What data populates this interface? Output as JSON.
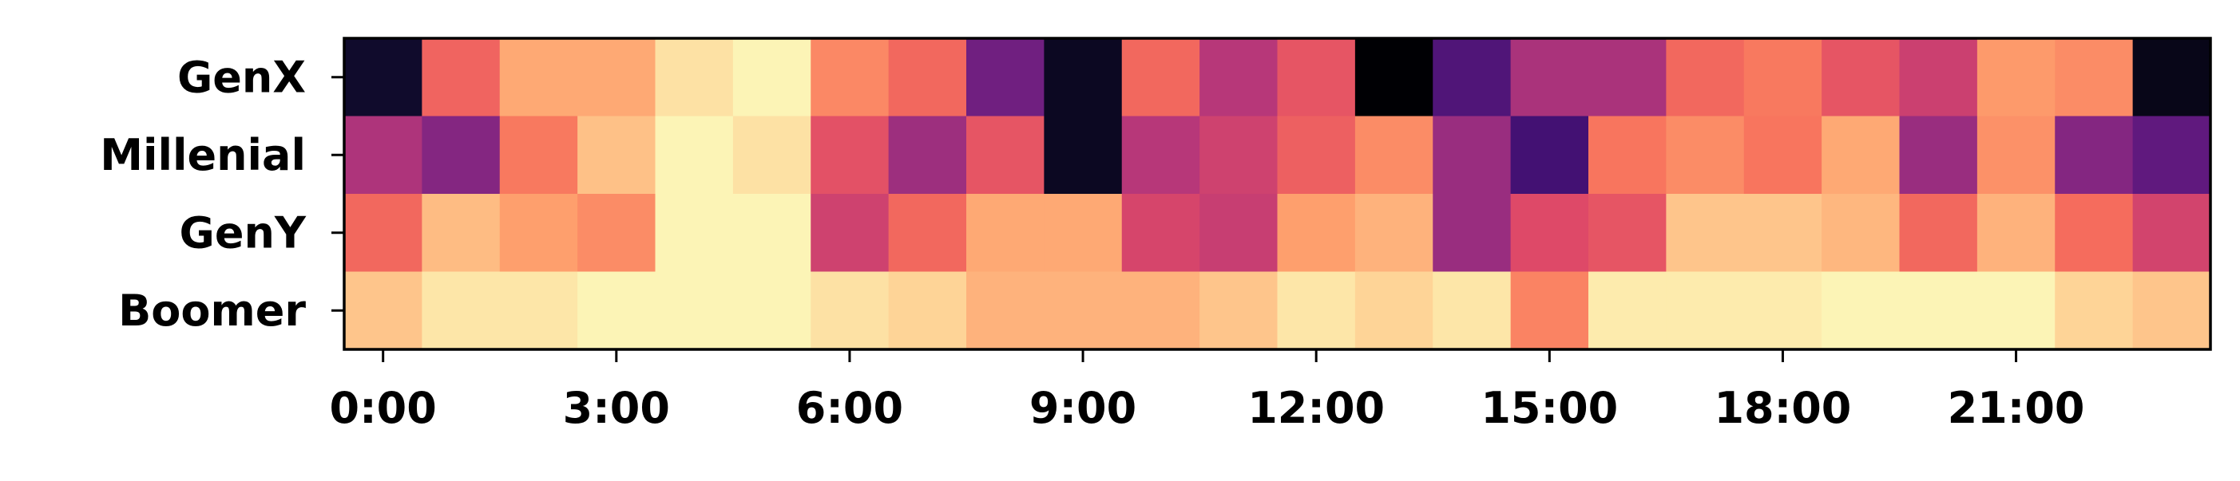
{
  "chart_data": {
    "type": "heatmap",
    "title": "",
    "xlabel": "",
    "ylabel": "",
    "colormap": "magma",
    "value_range": [
      0,
      1
    ],
    "grid": false,
    "rows": [
      "GenX",
      "Millenial",
      "GenY",
      "Boomer"
    ],
    "columns": [
      "0:00",
      "1:00",
      "2:00",
      "3:00",
      "4:00",
      "5:00",
      "6:00",
      "7:00",
      "8:00",
      "9:00",
      "10:00",
      "11:00",
      "12:00",
      "13:00",
      "14:00",
      "15:00",
      "16:00",
      "17:00",
      "18:00",
      "19:00",
      "20:00",
      "21:00",
      "22:00",
      "23:00"
    ],
    "x_tick_labels": [
      "0:00",
      "3:00",
      "6:00",
      "9:00",
      "12:00",
      "15:00",
      "18:00",
      "21:00"
    ],
    "x_tick_columns": [
      0,
      3,
      6,
      9,
      12,
      15,
      18,
      21
    ],
    "values": [
      [
        0.08,
        0.67,
        0.82,
        0.82,
        0.94,
        0.98,
        0.75,
        0.68,
        0.33,
        0.06,
        0.68,
        0.5,
        0.63,
        0.0,
        0.25,
        0.47,
        0.47,
        0.68,
        0.72,
        0.63,
        0.55,
        0.79,
        0.76,
        0.04
      ],
      [
        0.48,
        0.38,
        0.72,
        0.87,
        0.98,
        0.94,
        0.62,
        0.44,
        0.63,
        0.06,
        0.5,
        0.56,
        0.66,
        0.76,
        0.43,
        0.22,
        0.71,
        0.76,
        0.71,
        0.82,
        0.43,
        0.77,
        0.38,
        0.29
      ],
      [
        0.68,
        0.86,
        0.8,
        0.76,
        0.98,
        0.98,
        0.56,
        0.68,
        0.82,
        0.82,
        0.58,
        0.54,
        0.8,
        0.84,
        0.43,
        0.6,
        0.63,
        0.88,
        0.88,
        0.85,
        0.68,
        0.84,
        0.69,
        0.57
      ],
      [
        0.88,
        0.95,
        0.95,
        0.98,
        0.98,
        0.98,
        0.94,
        0.91,
        0.84,
        0.84,
        0.84,
        0.88,
        0.95,
        0.91,
        0.95,
        0.74,
        0.96,
        0.96,
        0.96,
        0.98,
        0.98,
        0.98,
        0.91,
        0.88
      ]
    ]
  }
}
